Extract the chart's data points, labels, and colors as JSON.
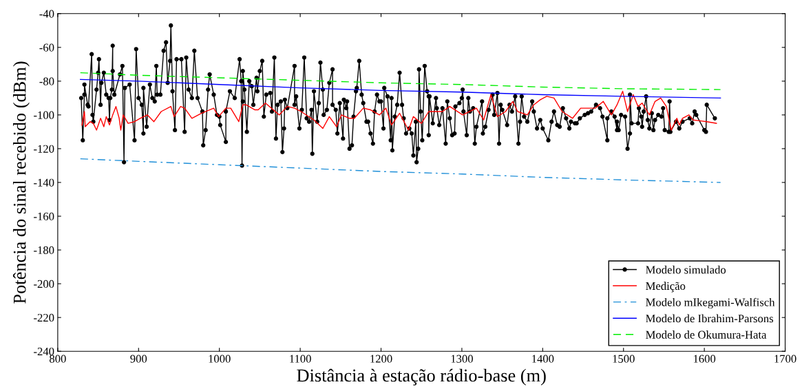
{
  "chart_data": {
    "type": "line",
    "xlabel": "Distância à estação rádio-base (m)",
    "ylabel": "Potência do sinal recebido (dBm)",
    "xlim": [
      800,
      1700
    ],
    "xticks": [
      800,
      900,
      1000,
      1100,
      1200,
      1300,
      1400,
      1500,
      1600,
      1700
    ],
    "ylim": [
      -240,
      -40
    ],
    "yticks": [
      -240,
      -220,
      -200,
      -180,
      -160,
      -140,
      -120,
      -100,
      -80,
      -60,
      -40
    ],
    "grid": false,
    "legend": "bottom right",
    "series": [
      {
        "name": "Modelo simulado",
        "color": "#000000",
        "marker": "circle",
        "line_style": "solid",
        "x": [
          829,
          831,
          833,
          833,
          837,
          838,
          842,
          843,
          844,
          848,
          850,
          851,
          853,
          854,
          857,
          860,
          863,
          864,
          865,
          867,
          868,
          868,
          870,
          877,
          880,
          882,
          883,
          889,
          895,
          897,
          900,
          904,
          906,
          906,
          910,
          914,
          917,
          920,
          922,
          923,
          927,
          931,
          934,
          936,
          939,
          940,
          942,
          945,
          947,
          953,
          957,
          959,
          962,
          966,
          969,
          973,
          979,
          980,
          983,
          986,
          988,
          993,
          997,
          1000,
          1001,
          1008,
          1008,
          1013,
          1019,
          1025,
          1027,
          1028,
          1029,
          1029,
          1031,
          1034,
          1037,
          1040,
          1042,
          1046,
          1047,
          1050,
          1053,
          1055,
          1058,
          1063,
          1065,
          1068,
          1070,
          1072,
          1076,
          1078,
          1080,
          1081,
          1084,
          1093,
          1093,
          1095,
          1099,
          1102,
          1105,
          1108,
          1111,
          1114,
          1115,
          1117,
          1121,
          1123,
          1125,
          1128,
          1129,
          1133,
          1136,
          1140,
          1140,
          1144,
          1146,
          1149,
          1153,
          1154,
          1157,
          1158,
          1161,
          1164,
          1166,
          1169,
          1170,
          1173,
          1176,
          1178,
          1182,
          1184,
          1187,
          1190,
          1192,
          1195,
          1198,
          1200,
          1203,
          1204,
          1208,
          1212,
          1213,
          1214,
          1217,
          1220,
          1223,
          1226,
          1228,
          1231,
          1235,
          1238,
          1240,
          1243,
          1244,
          1246,
          1247,
          1249,
          1251,
          1254,
          1257,
          1259,
          1259,
          1260,
          1264,
          1268,
          1269,
          1272,
          1276,
          1280,
          1282,
          1285,
          1288,
          1291,
          1292,
          1297,
          1300,
          1301,
          1302,
          1306,
          1308,
          1310,
          1314,
          1316,
          1318,
          1325,
          1326,
          1329,
          1333,
          1338,
          1340,
          1344,
          1346,
          1348,
          1350,
          1356,
          1359,
          1362,
          1366,
          1370,
          1372,
          1374,
          1377,
          1381,
          1387,
          1389,
          1393,
          1397,
          1400,
          1407,
          1411,
          1414,
          1418,
          1421,
          1425,
          1429,
          1433,
          1435,
          1440,
          1442,
          1446,
          1452,
          1456,
          1460,
          1466,
          1471,
          1474,
          1480,
          1480,
          1485,
          1489,
          1492,
          1492,
          1494,
          1497,
          1502,
          1505,
          1508,
          1508,
          1510,
          1518,
          1519,
          1522,
          1523,
          1525,
          1528,
          1530,
          1532,
          1535,
          1537,
          1539,
          1543,
          1547,
          1549,
          1551,
          1556,
          1557,
          1558,
          1565,
          1569,
          1573,
          1582,
          1585,
          1588,
          1590,
          1600,
          1602,
          1603,
          1613
        ],
        "values": [
          -90,
          -115,
          -88,
          -82,
          -94,
          -95,
          -64,
          -100,
          -104,
          -85,
          -75,
          -67,
          -94,
          -81,
          -75,
          -88,
          -90,
          -103,
          -90,
          -85,
          -59,
          -74,
          -88,
          -76,
          -71,
          -128,
          -84,
          -82,
          -115,
          -61,
          -90,
          -94,
          -111,
          -84,
          -107,
          -82,
          -90,
          -92,
          -71,
          -88,
          -88,
          -62,
          -57,
          -81,
          -68,
          -47,
          -86,
          -109,
          -67,
          -67,
          -110,
          -66,
          -85,
          -90,
          -62,
          -90,
          -98,
          -118,
          -109,
          -85,
          -76,
          -88,
          -100,
          -101,
          -106,
          -116,
          -98,
          -86,
          -90,
          -67,
          -80,
          -130,
          -92,
          -74,
          -85,
          -110,
          -80,
          -83,
          -94,
          -78,
          -86,
          -74,
          -68,
          -101,
          -88,
          -87,
          -98,
          -66,
          -114,
          -94,
          -92,
          -122,
          -108,
          -91,
          -96,
          -71,
          -94,
          -89,
          -108,
          -97,
          -66,
          -102,
          -104,
          -97,
          -123,
          -86,
          -104,
          -93,
          -69,
          -85,
          -100,
          -97,
          -81,
          -73,
          -94,
          -97,
          -111,
          -93,
          -114,
          -91,
          -96,
          -92,
          -120,
          -118,
          -101,
          -86,
          -84,
          -68,
          -88,
          -93,
          -104,
          -104,
          -111,
          -117,
          -98,
          -88,
          -92,
          -92,
          -108,
          -84,
          -89,
          -115,
          -90,
          -121,
          -101,
          -94,
          -75,
          -94,
          -102,
          -111,
          -108,
          -111,
          -124,
          -104,
          -128,
          -120,
          -73,
          -98,
          -115,
          -71,
          -86,
          -89,
          -112,
          -89,
          -105,
          -90,
          -96,
          -106,
          -96,
          -117,
          -92,
          -102,
          -112,
          -111,
          -95,
          -93,
          -90,
          -85,
          -98,
          -112,
          -90,
          -98,
          -96,
          -117,
          -107,
          -92,
          -111,
          -107,
          -97,
          -88,
          -100,
          -87,
          -117,
          -94,
          -97,
          -106,
          -94,
          -98,
          -89,
          -117,
          -104,
          -89,
          -101,
          -104,
          -92,
          -98,
          -108,
          -103,
          -108,
          -115,
          -104,
          -98,
          -106,
          -107,
          -96,
          -102,
          -108,
          -104,
          -105,
          -105,
          -102,
          -100,
          -99,
          -98,
          -94,
          -96,
          -101,
          -115,
          -102,
          -98,
          -101,
          -109,
          -104,
          -109,
          -100,
          -101,
          -120,
          -111,
          -88,
          -105,
          -105,
          -96,
          -101,
          -107,
          -98,
          -89,
          -103,
          -108,
          -99,
          -109,
          -103,
          -100,
          -101,
          -96,
          -109,
          -110,
          -92,
          -110,
          -104,
          -108,
          -104,
          -102,
          -105,
          -98,
          -100,
          -109,
          -110,
          -94,
          -102
        ]
      },
      {
        "name": "Medição",
        "color": "#ff0000",
        "marker": "none",
        "line_style": "solid",
        "x": [
          830,
          833,
          834,
          840,
          844,
          848,
          853,
          857,
          860,
          864,
          868,
          872,
          876,
          878,
          881,
          887,
          895,
          902,
          911,
          919,
          928,
          940,
          944,
          952,
          957,
          966,
          978,
          993,
          999,
          1008,
          1014,
          1024,
          1029,
          1033,
          1044,
          1048,
          1057,
          1074,
          1084,
          1093,
          1101,
          1117,
          1128,
          1136,
          1145,
          1151,
          1161,
          1167,
          1178,
          1187,
          1198,
          1206,
          1213,
          1223,
          1234,
          1240,
          1250,
          1259,
          1263,
          1276,
          1285,
          1301,
          1318,
          1327,
          1336,
          1344,
          1354,
          1363,
          1369,
          1381,
          1389,
          1397,
          1405,
          1414,
          1424,
          1437,
          1447,
          1458,
          1465,
          1475,
          1485,
          1492,
          1499,
          1505,
          1512,
          1518,
          1523,
          1532,
          1539,
          1546,
          1553,
          1559,
          1566,
          1569,
          1573,
          1581,
          1586,
          1603,
          1615
        ],
        "values": [
          -106,
          -98,
          -107,
          -104,
          -105,
          -109,
          -102,
          -107,
          -101,
          -106,
          -100,
          -95,
          -102,
          -109,
          -100,
          -105,
          -104,
          -102,
          -100,
          -104,
          -98,
          -95,
          -101,
          -95,
          -96,
          -102,
          -99,
          -96,
          -101,
          -96,
          -96,
          -104,
          -94,
          -94,
          -97,
          -97,
          -93,
          -100,
          -95,
          -96,
          -98,
          -103,
          -108,
          -101,
          -107,
          -100,
          -102,
          -102,
          -96,
          -97,
          -100,
          -96,
          -106,
          -99,
          -109,
          -101,
          -105,
          -98,
          -98,
          -98,
          -95,
          -100,
          -96,
          -103,
          -88,
          -101,
          -98,
          -92,
          -98,
          -100,
          -94,
          -91,
          -89,
          -90,
          -98,
          -102,
          -96,
          -96,
          -96,
          -92,
          -100,
          -94,
          -86,
          -98,
          -88,
          -95,
          -93,
          -100,
          -92,
          -90,
          -95,
          -109,
          -102,
          -106,
          -102,
          -100,
          -103,
          -104,
          -105
        ]
      },
      {
        "name": "Modelo mIkegami-Walfisch",
        "color": "#1f8fd8",
        "marker": "none",
        "line_style": "dashdot",
        "x": [
          828,
          900,
          1000,
          1100,
          1200,
          1300,
          1400,
          1500,
          1620
        ],
        "values": [
          -126,
          -127.5,
          -129.5,
          -131.5,
          -133.5,
          -135,
          -137,
          -138.5,
          -140
        ]
      },
      {
        "name": "Modelo de Ibrahim-Parsons",
        "color": "#0000ff",
        "marker": "none",
        "line_style": "solid",
        "x": [
          828,
          900,
          1000,
          1100,
          1200,
          1300,
          1400,
          1500,
          1620
        ],
        "values": [
          -79,
          -80,
          -82,
          -84,
          -85.5,
          -86.5,
          -88,
          -89,
          -90
        ]
      },
      {
        "name": "Modelo de Okumura-Hata",
        "color": "#00ee00",
        "marker": "none",
        "line_style": "dashed",
        "x": [
          828,
          900,
          1000,
          1100,
          1200,
          1300,
          1400,
          1500,
          1620
        ],
        "values": [
          -75,
          -76.5,
          -78,
          -79.5,
          -81,
          -82,
          -83.5,
          -84.5,
          -85
        ]
      }
    ]
  }
}
